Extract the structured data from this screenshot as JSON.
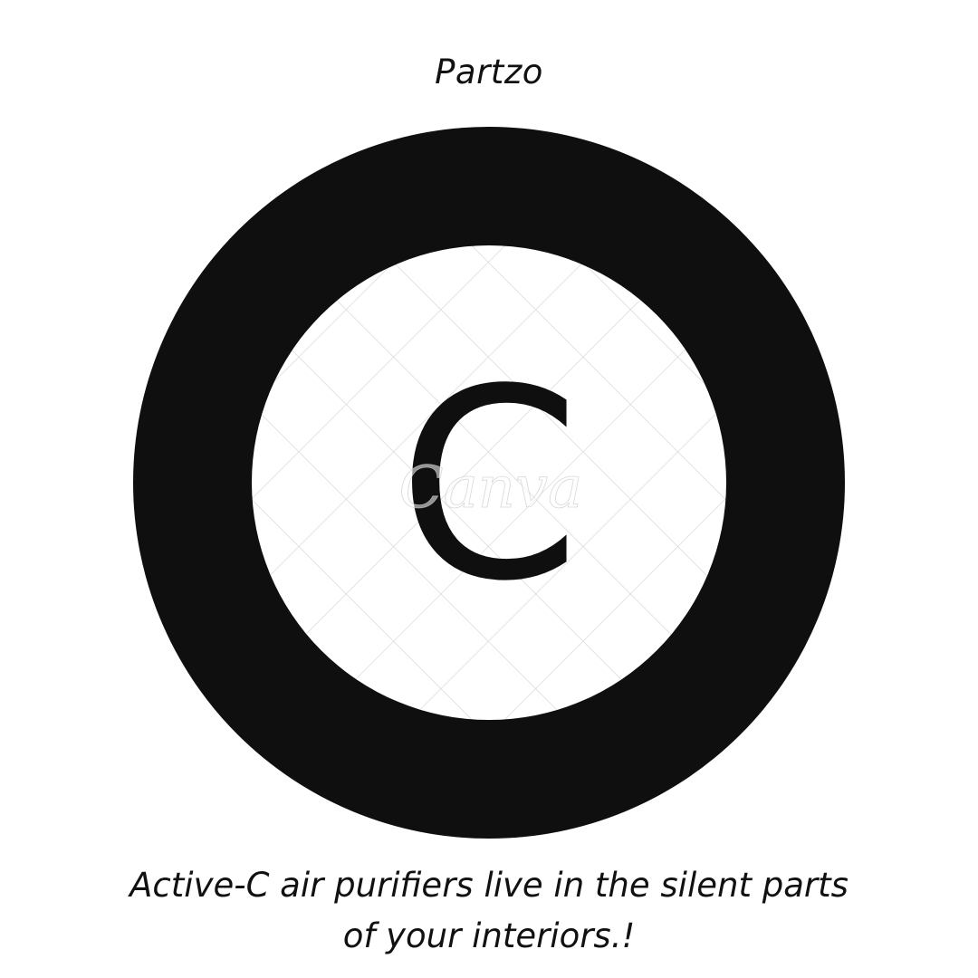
{
  "brand": {
    "name": "Partzo"
  },
  "logo": {
    "letter": "C",
    "watermark": "Canva",
    "ring_color": "#0f0f0f",
    "pattern_color": "#d9d9d9"
  },
  "tagline": {
    "line1": "Active-C air purifiers live in the silent parts",
    "line2": "of your interiors.!"
  }
}
